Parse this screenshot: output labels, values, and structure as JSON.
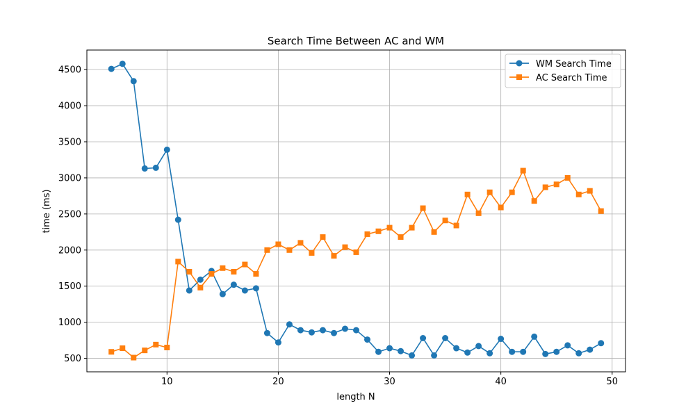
{
  "chart_data": {
    "type": "line",
    "title": "Search Time Between AC and WM",
    "xlabel": "length N",
    "ylabel": "time (ms)",
    "xlim": [
      2.8,
      51.2
    ],
    "ylim": [
      313,
      4771
    ],
    "xticks": [
      10,
      20,
      30,
      40,
      50
    ],
    "yticks": [
      500,
      1000,
      1500,
      2000,
      2500,
      3000,
      3500,
      4000,
      4500
    ],
    "grid": true,
    "legend_position": "top-right",
    "x": [
      5,
      6,
      7,
      8,
      9,
      10,
      11,
      12,
      13,
      14,
      15,
      16,
      17,
      18,
      19,
      20,
      21,
      22,
      23,
      24,
      25,
      26,
      27,
      28,
      29,
      30,
      31,
      32,
      33,
      34,
      35,
      36,
      37,
      38,
      39,
      40,
      41,
      42,
      43,
      44,
      45,
      46,
      47,
      48,
      49
    ],
    "series": [
      {
        "name": "WM Search Time",
        "color": "#1f77b4",
        "marker": "circle",
        "values": [
          4510,
          4580,
          4340,
          3130,
          3140,
          3390,
          2420,
          1440,
          1590,
          1710,
          1390,
          1520,
          1440,
          1470,
          850,
          720,
          970,
          890,
          860,
          890,
          850,
          910,
          890,
          760,
          590,
          640,
          600,
          540,
          780,
          540,
          780,
          640,
          580,
          670,
          570,
          770,
          590,
          590,
          800,
          560,
          590,
          680,
          570,
          620,
          710
        ]
      },
      {
        "name": "AC Search Time",
        "color": "#ff7f0e",
        "marker": "square",
        "values": [
          590,
          640,
          510,
          610,
          690,
          650,
          1840,
          1700,
          1480,
          1670,
          1750,
          1700,
          1800,
          1670,
          2000,
          2080,
          2000,
          2100,
          1960,
          2180,
          1920,
          2040,
          1970,
          2220,
          2260,
          2310,
          2180,
          2310,
          2580,
          2250,
          2410,
          2340,
          2770,
          2510,
          2800,
          2590,
          2800,
          3100,
          2680,
          2870,
          2910,
          3000,
          2770,
          2820,
          2540
        ]
      }
    ]
  }
}
